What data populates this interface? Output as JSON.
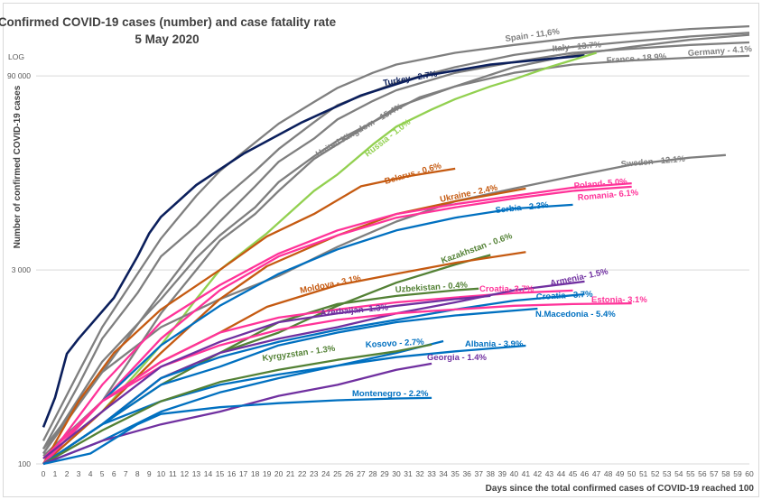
{
  "chart_data": {
    "type": "line",
    "title": "Confirmed COVID-19 cases (number) and case fatality rate",
    "subtitle": "5 May 2020",
    "scale_note": "LOG",
    "xlabel": "Days since the total confirmed cases of COVID-19 reached 100",
    "ylabel": "Number of confirmed COVID-19 cases",
    "y_scale": "log",
    "xlim": [
      0,
      60
    ],
    "ylim": [
      100,
      230000
    ],
    "y_ticks": [
      {
        "value": 100,
        "label": "100"
      },
      {
        "value": 3000,
        "label": "3 000"
      },
      {
        "value": 90000,
        "label": "90 000"
      }
    ],
    "grid": true,
    "legend": "none",
    "series": [
      {
        "name": "Spain - 11,6%",
        "color": "#7f7f7f",
        "x": [
          0,
          3,
          5,
          8,
          10,
          13,
          15,
          18,
          20,
          23,
          25,
          28,
          30,
          35,
          40,
          45,
          50,
          55,
          60
        ],
        "y": [
          150,
          500,
          1100,
          2800,
          5200,
          11000,
          17000,
          28000,
          39000,
          57000,
          73000,
          95000,
          110000,
          135000,
          155000,
          175000,
          190000,
          205000,
          215000
        ]
      },
      {
        "name": "Italy - 13.7%",
        "color": "#7f7f7f",
        "x": [
          0,
          3,
          5,
          8,
          10,
          13,
          15,
          18,
          20,
          23,
          25,
          30,
          35,
          40,
          45,
          50,
          55,
          60
        ],
        "y": [
          130,
          400,
          900,
          2000,
          3800,
          6500,
          10000,
          17000,
          25000,
          40000,
          54000,
          80000,
          105000,
          130000,
          150000,
          165000,
          180000,
          192000
        ]
      },
      {
        "name": "Germany - 4.1%",
        "color": "#7f7f7f",
        "x": [
          0,
          5,
          10,
          13,
          15,
          18,
          20,
          23,
          25,
          28,
          30,
          35,
          40,
          45,
          50,
          55,
          60
        ],
        "y": [
          130,
          500,
          2000,
          4500,
          7000,
          13000,
          20000,
          30000,
          42000,
          58000,
          70000,
          95000,
          115000,
          135000,
          145000,
          155000,
          162000
        ]
      },
      {
        "name": "France - 18.9%",
        "color": "#7f7f7f",
        "x": [
          0,
          5,
          10,
          13,
          15,
          18,
          20,
          23,
          25,
          28,
          30,
          35,
          40,
          45,
          50,
          55,
          60
        ],
        "y": [
          120,
          600,
          1800,
          3700,
          5500,
          9000,
          14000,
          22000,
          29000,
          40000,
          52000,
          75000,
          95000,
          110000,
          118000,
          124000,
          128000
        ]
      },
      {
        "name": "United Kingdom - 15.4%",
        "color": "#7f7f7f",
        "x": [
          0,
          5,
          10,
          13,
          15,
          18,
          20,
          23,
          28,
          30,
          32,
          35,
          40,
          45,
          50,
          55,
          60
        ],
        "y": [
          115,
          300,
          1400,
          3000,
          5000,
          8000,
          12000,
          21000,
          40000,
          50000,
          62000,
          75000,
          105000,
          130000,
          150000,
          170000,
          185000
        ]
      },
      {
        "name": "Turkey - 2.7%",
        "color": "#0b1f5c",
        "x": [
          0,
          1,
          2,
          3,
          4,
          6,
          8,
          9,
          10,
          13,
          17,
          22,
          27,
          32,
          38,
          46
        ],
        "y": [
          190,
          320,
          690,
          900,
          1140,
          1840,
          3800,
          5700,
          7600,
          13300,
          23000,
          40000,
          64000,
          89000,
          110000,
          129000
        ]
      },
      {
        "name": "Russia - 1.0%",
        "color": "#92d050",
        "x": [
          0,
          5,
          10,
          13,
          15,
          19,
          23,
          25,
          28,
          30,
          33,
          35,
          38,
          40,
          43,
          47
        ],
        "y": [
          110,
          250,
          800,
          1800,
          3000,
          5700,
          12000,
          16000,
          27000,
          37000,
          50000,
          60000,
          75000,
          85000,
          105000,
          135000
        ]
      },
      {
        "name": "Sweden - 12.1%",
        "color": "#7f7f7f",
        "x": [
          0,
          5,
          10,
          15,
          20,
          25,
          30,
          35,
          40,
          45,
          50,
          55,
          58
        ],
        "y": [
          120,
          500,
          1100,
          1800,
          2700,
          4500,
          7000,
          10000,
          12500,
          15500,
          19000,
          21500,
          22500
        ]
      },
      {
        "name": "Belarus - 0.6%",
        "color": "#c55a11",
        "x": [
          0,
          3,
          6,
          10,
          15,
          19,
          23,
          27,
          31,
          35
        ],
        "y": [
          100,
          300,
          700,
          1500,
          3000,
          5400,
          8000,
          13000,
          15500,
          17700
        ]
      },
      {
        "name": "Ukraine - 2.4%",
        "color": "#c55a11",
        "x": [
          0,
          5,
          10,
          15,
          19,
          25,
          30,
          35,
          41
        ],
        "y": [
          100,
          250,
          700,
          1800,
          3200,
          5500,
          8000,
          10000,
          12500
        ]
      },
      {
        "name": "Poland- 5.0%",
        "color": "#ff3399",
        "x": [
          0,
          5,
          10,
          15,
          20,
          25,
          30,
          35,
          40,
          45,
          50
        ],
        "y": [
          100,
          400,
          1200,
          2300,
          4000,
          6000,
          8000,
          9500,
          11000,
          12700,
          13700
        ]
      },
      {
        "name": "Romania- 6.1%",
        "color": "#ff3399",
        "x": [
          0,
          5,
          10,
          15,
          20,
          25,
          30,
          35,
          40,
          45,
          50
        ],
        "y": [
          110,
          300,
          900,
          2100,
          3800,
          5500,
          7500,
          9000,
          10500,
          12000,
          12900
        ]
      },
      {
        "name": "Serbia - 2.3%",
        "color": "#0070c0",
        "x": [
          0,
          5,
          10,
          15,
          20,
          25,
          30,
          35,
          40,
          45
        ],
        "y": [
          100,
          300,
          800,
          1600,
          2800,
          4300,
          6000,
          7500,
          8800,
          9400
        ]
      },
      {
        "name": "Kazakhstan - 0.6%",
        "color": "#538135",
        "x": [
          0,
          5,
          10,
          15,
          20,
          25,
          30,
          35,
          38
        ],
        "y": [
          100,
          200,
          450,
          700,
          1000,
          1600,
          2400,
          3300,
          3900
        ]
      },
      {
        "name": "Moldova - 3.1%",
        "color": "#c55a11",
        "x": [
          0,
          5,
          10,
          15,
          19,
          25,
          30,
          35,
          41
        ],
        "y": [
          100,
          300,
          600,
          1000,
          1570,
          2300,
          2800,
          3400,
          4100
        ]
      },
      {
        "name": "Uzbekistan - 0.4%",
        "color": "#538135",
        "x": [
          0,
          5,
          10,
          15,
          20,
          25,
          30,
          35,
          37
        ],
        "y": [
          100,
          200,
          400,
          700,
          1200,
          1650,
          1900,
          2100,
          2160
        ]
      },
      {
        "name": "Croatia- 3.7%",
        "color": "#ff3399",
        "x": [
          0,
          5,
          10,
          15,
          20,
          25,
          30,
          35,
          40,
          45
        ],
        "y": [
          100,
          300,
          600,
          1000,
          1300,
          1500,
          1700,
          1850,
          2000,
          2090
        ]
      },
      {
        "name": "Armenia- 1.5%",
        "color": "#7030a0",
        "x": [
          0,
          5,
          10,
          15,
          20,
          25,
          30,
          35,
          40,
          46
        ],
        "y": [
          100,
          200,
          450,
          700,
          900,
          1100,
          1400,
          1700,
          2100,
          2450
        ]
      },
      {
        "name": "Croatia - 3.7%",
        "color": "#0070c0",
        "x": [
          0,
          5,
          10,
          15,
          20,
          25,
          30,
          35,
          40,
          46
        ],
        "y": [
          100,
          200,
          450,
          650,
          850,
          1050,
          1250,
          1500,
          1750,
          1960
        ]
      },
      {
        "name": "Estonia- 3.1%",
        "color": "#ff3399",
        "x": [
          0,
          5,
          10,
          15,
          20,
          25,
          30,
          35,
          40,
          45,
          50
        ],
        "y": [
          100,
          300,
          550,
          800,
          1050,
          1250,
          1400,
          1500,
          1600,
          1650,
          1670
        ]
      },
      {
        "name": "N.Macedonia - 5.4%",
        "color": "#0070c0",
        "x": [
          0,
          5,
          10,
          15,
          20,
          25,
          30,
          35,
          42
        ],
        "y": [
          100,
          200,
          400,
          550,
          800,
          1000,
          1200,
          1350,
          1520
        ]
      },
      {
        "name": "Azerbaijan- 1.3%",
        "color": "#7030a0",
        "x": [
          0,
          5,
          10,
          15,
          20,
          25,
          30,
          35,
          38
        ],
        "y": [
          110,
          250,
          550,
          850,
          1200,
          1400,
          1600,
          1800,
          1900
        ]
      },
      {
        "name": "Kosovo - 2.7%",
        "color": "#0070c0",
        "x": [
          0,
          5,
          10,
          15,
          20,
          25,
          30,
          34
        ],
        "y": [
          100,
          150,
          250,
          350,
          450,
          560,
          700,
          860
        ]
      },
      {
        "name": "Albania - 3.9%",
        "color": "#0070c0",
        "x": [
          0,
          5,
          10,
          15,
          20,
          25,
          30,
          35,
          41
        ],
        "y": [
          100,
          200,
          300,
          400,
          480,
          560,
          650,
          720,
          795
        ]
      },
      {
        "name": "Kyrgyzstan - 1.3%",
        "color": "#538135",
        "x": [
          0,
          5,
          10,
          15,
          20,
          25,
          30,
          33
        ],
        "y": [
          100,
          180,
          300,
          420,
          520,
          620,
          720,
          810
        ]
      },
      {
        "name": "Georgia - 1.4%",
        "color": "#7030a0",
        "x": [
          0,
          5,
          10,
          15,
          20,
          25,
          30,
          33
        ],
        "y": [
          100,
          150,
          200,
          250,
          330,
          400,
          520,
          580
        ]
      },
      {
        "name": "Montenegro - 2.2%",
        "color": "#0070c0",
        "x": [
          0,
          4,
          8,
          10,
          15,
          20,
          25,
          30,
          33
        ],
        "y": [
          100,
          120,
          200,
          240,
          270,
          290,
          305,
          315,
          318
        ]
      }
    ]
  }
}
